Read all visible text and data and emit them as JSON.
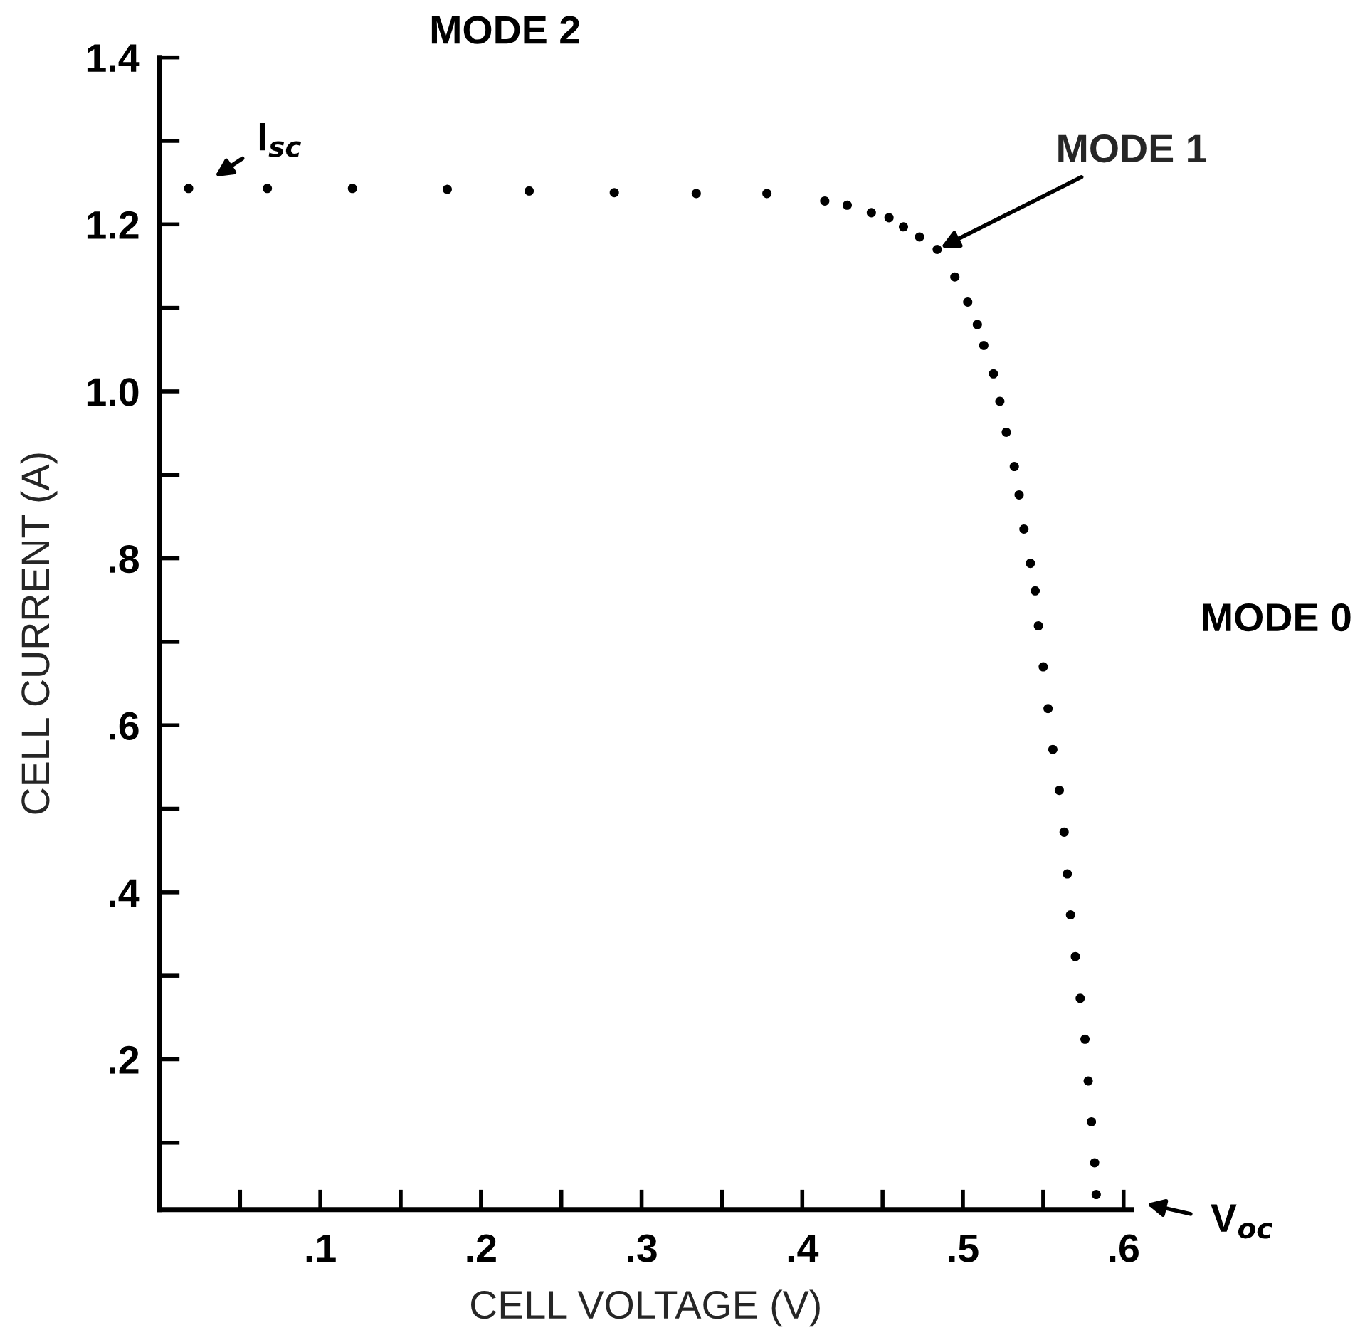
{
  "chart_data": {
    "type": "scatter",
    "xlabel": "CELL VOLTAGE (V)",
    "ylabel": "CELL CURRENT (A)",
    "x": [
      0.018,
      0.067,
      0.12,
      0.179,
      0.23,
      0.283,
      0.334,
      0.378,
      0.414,
      0.428,
      0.443,
      0.454,
      0.463,
      0.473,
      0.484,
      0.495,
      0.503,
      0.509,
      0.513,
      0.519,
      0.523,
      0.527,
      0.532,
      0.535,
      0.538,
      0.542,
      0.545,
      0.547,
      0.55,
      0.553,
      0.556,
      0.56,
      0.563,
      0.565,
      0.567,
      0.57,
      0.573,
      0.576,
      0.578,
      0.58,
      0.582,
      0.583
    ],
    "series": [
      {
        "color": "#000000",
        "values": [
          1.243,
          1.243,
          1.243,
          1.242,
          1.24,
          1.238,
          1.237,
          1.237,
          1.228,
          1.223,
          1.214,
          1.208,
          1.197,
          1.185,
          1.17,
          1.137,
          1.107,
          1.08,
          1.055,
          1.021,
          0.988,
          0.951,
          0.91,
          0.876,
          0.835,
          0.794,
          0.761,
          0.719,
          0.67,
          0.62,
          0.571,
          0.522,
          0.472,
          0.422,
          0.373,
          0.323,
          0.273,
          0.224,
          0.174,
          0.125,
          0.076,
          0.038
        ]
      }
    ],
    "marker": "circle",
    "xlim": [
      0,
      0.605
    ],
    "ylim": [
      0.02,
      1.4
    ],
    "xticks": [
      {
        "value": 0.05,
        "label": null
      },
      {
        "value": 0.1,
        "label": ".1"
      },
      {
        "value": 0.15,
        "label": null
      },
      {
        "value": 0.2,
        "label": ".2"
      },
      {
        "value": 0.25,
        "label": null
      },
      {
        "value": 0.3,
        "label": ".3"
      },
      {
        "value": 0.35,
        "label": null
      },
      {
        "value": 0.4,
        "label": ".4"
      },
      {
        "value": 0.45,
        "label": null
      },
      {
        "value": 0.5,
        "label": ".5"
      },
      {
        "value": 0.55,
        "label": null
      },
      {
        "value": 0.6,
        "label": ".6"
      }
    ],
    "yticks": [
      {
        "value": 0.1,
        "label": null
      },
      {
        "value": 0.2,
        "label": ".2"
      },
      {
        "value": 0.3,
        "label": null
      },
      {
        "value": 0.4,
        "label": ".4"
      },
      {
        "value": 0.5,
        "label": null
      },
      {
        "value": 0.6,
        "label": ".6"
      },
      {
        "value": 0.7,
        "label": null
      },
      {
        "value": 0.8,
        "label": ".8"
      },
      {
        "value": 0.9,
        "label": null
      },
      {
        "value": 1.0,
        "label": "1.0"
      },
      {
        "value": 1.1,
        "label": null
      },
      {
        "value": 1.2,
        "label": "1.2"
      },
      {
        "value": 1.3,
        "label": null
      },
      {
        "value": 1.4,
        "label": "1.4"
      }
    ],
    "grid": false,
    "legend": false,
    "annotations": [
      "MODE 2",
      "I$_{sc}$",
      {
        "text": "MODE 1",
        "x": 0.484,
        "y": 1.17
      },
      "MODE 0",
      "V$_{oc}$"
    ]
  }
}
